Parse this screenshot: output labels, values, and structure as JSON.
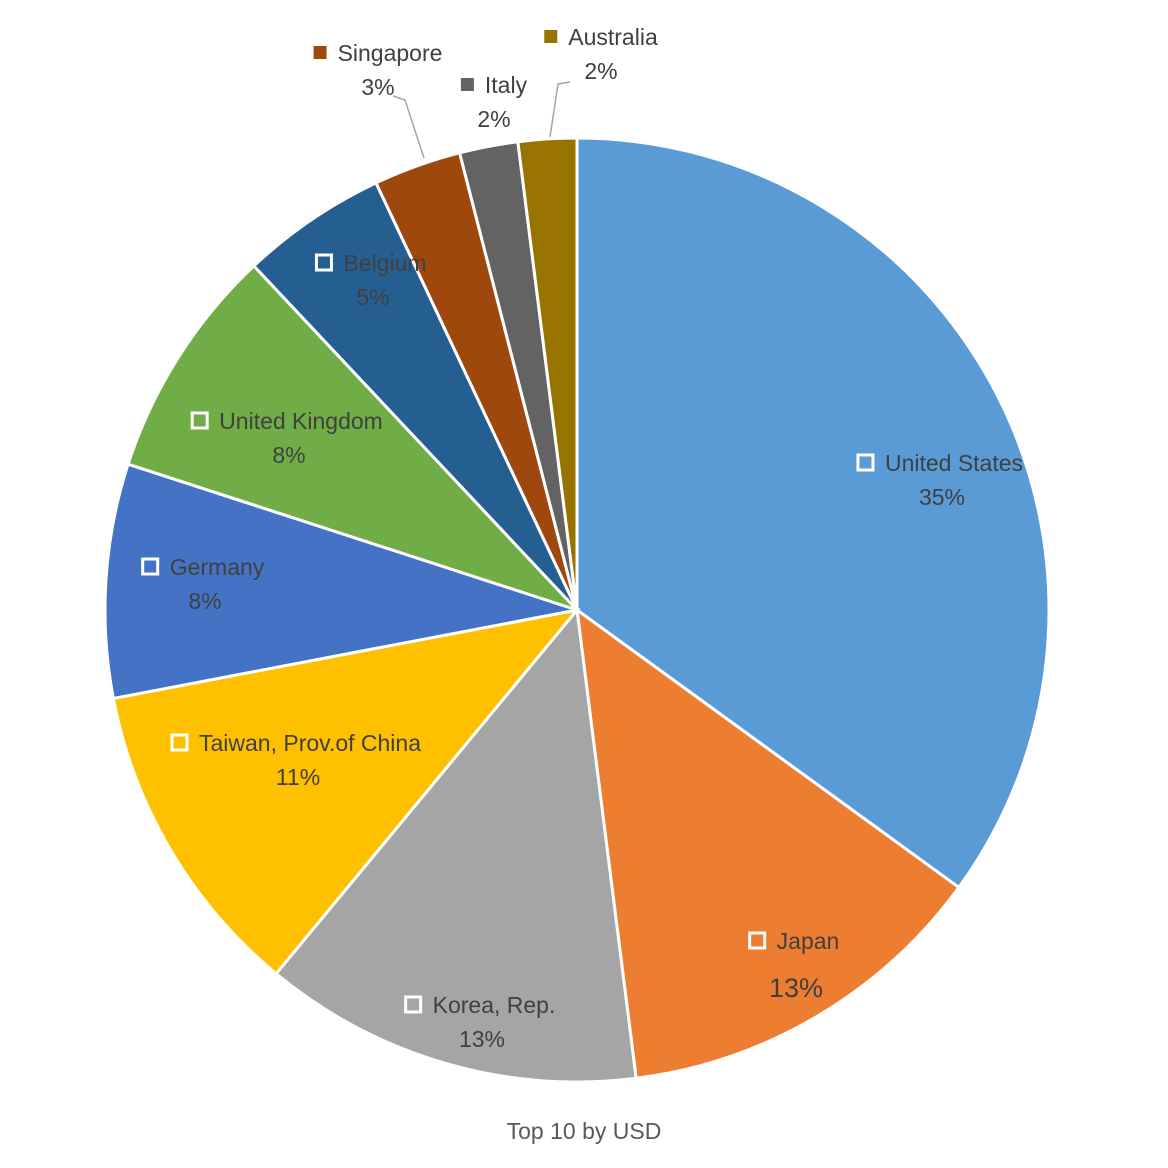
{
  "chart_data": {
    "type": "pie",
    "caption": "Top 10 by USD",
    "slices": [
      {
        "label": "United States",
        "value": 35,
        "value_label": "35%",
        "color": "#5B9BD5"
      },
      {
        "label": "Japan",
        "value": 13,
        "value_label": "13%",
        "color": "#ED7D31"
      },
      {
        "label": "Korea, Rep.",
        "value": 13,
        "value_label": "13%",
        "color": "#A5A5A5"
      },
      {
        "label": "Taiwan, Prov.of China",
        "value": 11,
        "value_label": "11%",
        "color": "#FFC000"
      },
      {
        "label": "Germany",
        "value": 8,
        "value_label": "8%",
        "color": "#4472C4"
      },
      {
        "label": "United Kingdom",
        "value": 8,
        "value_label": "8%",
        "color": "#70AD47"
      },
      {
        "label": "Belgium",
        "value": 5,
        "value_label": "5%",
        "color": "#255E91"
      },
      {
        "label": "Singapore",
        "value": 3,
        "value_label": "3%",
        "color": "#9E480E"
      },
      {
        "label": "Italy",
        "value": 2,
        "value_label": "2%",
        "color": "#636363"
      },
      {
        "label": "Australia",
        "value": 2,
        "value_label": "2%",
        "color": "#997300"
      }
    ]
  }
}
